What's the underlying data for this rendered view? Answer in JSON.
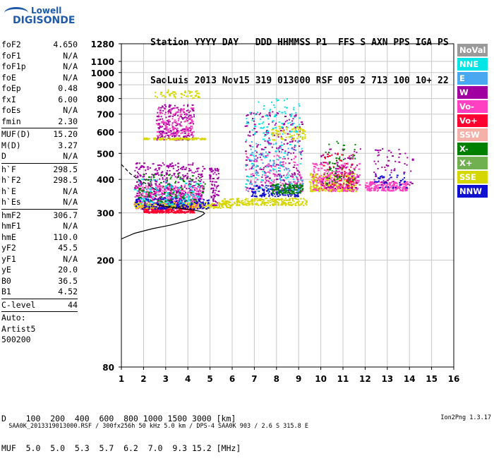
{
  "logo": {
    "line1": "Lowell",
    "line2": "DIGISONDE"
  },
  "header": {
    "line1": "Station YYYY DAY   DDD HHMMSS P1  FFS S AXN PPS IGA PS",
    "line2": "SaoLuis 2013 Nov15 319 013000 RSF 005 2 713 100 10+ 22"
  },
  "params": [
    [
      [
        "foF2",
        "4.650"
      ],
      [
        "foF1",
        "N/A"
      ],
      [
        "foF1p",
        "N/A"
      ],
      [
        "foE",
        "N/A"
      ],
      [
        "foEp",
        "0.48"
      ],
      [
        "fxI",
        "6.00"
      ],
      [
        "foEs",
        "N/A"
      ],
      [
        "fmin",
        "2.30"
      ]
    ],
    [
      [
        "MUF(D)",
        "15.20"
      ],
      [
        "M(D)",
        "3.27"
      ],
      [
        "D",
        "N/A"
      ]
    ],
    [
      [
        "h`F",
        "298.5"
      ],
      [
        "h`F2",
        "298.5"
      ],
      [
        "h`E",
        "N/A"
      ],
      [
        "h`Es",
        "N/A"
      ]
    ],
    [
      [
        "hmF2",
        "306.7"
      ],
      [
        "hmF1",
        "N/A"
      ],
      [
        "hmE",
        "110.0"
      ],
      [
        "yF2",
        "45.5"
      ],
      [
        "yF1",
        "N/A"
      ],
      [
        "yE",
        "20.0"
      ],
      [
        "B0",
        "36.5"
      ],
      [
        "B1",
        "4.52"
      ]
    ],
    [
      [
        "C-level",
        "44"
      ]
    ]
  ],
  "auto": [
    "Auto:",
    "Artist5",
    "500200"
  ],
  "footer": {
    "d_row": "D    100  200  400  600  800 1000 1500 3000 [km]",
    "muf_row": "MUF  5.0  5.0  5.3  5.7  6.2  7.0  9.3 15.2 [MHz]",
    "info": "SAA0K_2013319013000.RSF / 300fx256h 50 kHz 5.0 km / DPS-4 SAA0K 903 / 2.6 S 315.8 E",
    "version": "Ion2Png 1.3.17"
  },
  "legend": [
    {
      "label": "NoVal",
      "color": "#999999"
    },
    {
      "label": "NNE",
      "color": "#00e5e5"
    },
    {
      "label": "E",
      "color": "#4aa8f0"
    },
    {
      "label": "W",
      "color": "#a000a0"
    },
    {
      "label": "Vo-",
      "color": "#ff40c0"
    },
    {
      "label": "Vo+",
      "color": "#ff0030"
    },
    {
      "label": "SSW",
      "color": "#f5b0a8"
    },
    {
      "label": "X-",
      "color": "#008000"
    },
    {
      "label": "X+",
      "color": "#70b050"
    },
    {
      "label": "SSE",
      "color": "#d6d600"
    },
    {
      "label": "NNW",
      "color": "#1010d0"
    }
  ],
  "chart_data": {
    "type": "scatter",
    "x_ticks": [
      1,
      2,
      3,
      4,
      5,
      6,
      7,
      8,
      9,
      10,
      11,
      12,
      13,
      14,
      15,
      16
    ],
    "y_ticks": [
      80,
      200,
      300,
      400,
      500,
      600,
      700,
      800,
      900,
      1000,
      1100,
      1280
    ],
    "xlim": [
      1,
      16
    ],
    "ylim": [
      80,
      1280
    ],
    "y_scale": "log",
    "grid": true,
    "clusters": [
      {
        "color": "#ff40c0",
        "xr": [
          1.6,
          4.7
        ],
        "yr": [
          310,
          380
        ],
        "n": 500
      },
      {
        "color": "#a000a0",
        "xr": [
          1.6,
          4.8
        ],
        "yr": [
          320,
          460
        ],
        "n": 350
      },
      {
        "color": "#ff0030",
        "xr": [
          2.0,
          4.3
        ],
        "yr": [
          300,
          318
        ],
        "n": 300
      },
      {
        "color": "#a000a0",
        "xr": [
          2.6,
          4.3
        ],
        "yr": [
          560,
          760
        ],
        "n": 220
      },
      {
        "color": "#ff40c0",
        "xr": [
          2.6,
          4.3
        ],
        "yr": [
          580,
          740
        ],
        "n": 120
      },
      {
        "color": "#d6d600",
        "xr": [
          2.5,
          4.6
        ],
        "yr": [
          800,
          860
        ],
        "n": 50
      },
      {
        "color": "#d6d600",
        "xr": [
          2.0,
          4.8
        ],
        "yr": [
          562,
          570
        ],
        "n": 120
      },
      {
        "color": "#d6d600",
        "xr": [
          1.6,
          6.0
        ],
        "yr": [
          312,
          328
        ],
        "n": 260
      },
      {
        "color": "#d6d600",
        "xr": [
          5.5,
          9.4
        ],
        "yr": [
          320,
          340
        ],
        "n": 220
      },
      {
        "color": "#1010d0",
        "xr": [
          1.6,
          5.0
        ],
        "yr": [
          310,
          340
        ],
        "n": 160
      },
      {
        "color": "#00e5e5",
        "xr": [
          1.6,
          4.6
        ],
        "yr": [
          320,
          400
        ],
        "n": 110
      },
      {
        "color": "#008000",
        "xr": [
          1.8,
          4.8
        ],
        "yr": [
          330,
          420
        ],
        "n": 90
      },
      {
        "color": "#a000a0",
        "xr": [
          5.0,
          5.4
        ],
        "yr": [
          320,
          440
        ],
        "n": 70
      },
      {
        "color": "#a000a0",
        "xr": [
          6.6,
          9.2
        ],
        "yr": [
          360,
          720
        ],
        "n": 260
      },
      {
        "color": "#00e5e5",
        "xr": [
          6.6,
          9.2
        ],
        "yr": [
          360,
          800
        ],
        "n": 180
      },
      {
        "color": "#ff40c0",
        "xr": [
          6.6,
          9.2
        ],
        "yr": [
          360,
          500
        ],
        "n": 120
      },
      {
        "color": "#1010d0",
        "xr": [
          6.8,
          9.0
        ],
        "yr": [
          345,
          380
        ],
        "n": 120
      },
      {
        "color": "#008000",
        "xr": [
          7.8,
          9.2
        ],
        "yr": [
          355,
          385
        ],
        "n": 120
      },
      {
        "color": "#d6d600",
        "xr": [
          7.8,
          9.3
        ],
        "yr": [
          560,
          630
        ],
        "n": 70
      },
      {
        "color": "#4aa8f0",
        "xr": [
          6.8,
          9.2
        ],
        "yr": [
          360,
          560
        ],
        "n": 80
      },
      {
        "color": "#d6d600",
        "xr": [
          9.5,
          11.6
        ],
        "yr": [
          360,
          420
        ],
        "n": 260
      },
      {
        "color": "#ff40c0",
        "xr": [
          9.6,
          11.8
        ],
        "yr": [
          360,
          460
        ],
        "n": 220
      },
      {
        "color": "#ff0030",
        "xr": [
          10.0,
          11.6
        ],
        "yr": [
          370,
          500
        ],
        "n": 80
      },
      {
        "color": "#a000a0",
        "xr": [
          10.0,
          11.8
        ],
        "yr": [
          370,
          520
        ],
        "n": 80
      },
      {
        "color": "#008000",
        "xr": [
          10.2,
          11.6
        ],
        "yr": [
          380,
          560
        ],
        "n": 50
      },
      {
        "color": "#ff40c0",
        "xr": [
          12.0,
          13.9
        ],
        "yr": [
          362,
          392
        ],
        "n": 180
      },
      {
        "color": "#a000a0",
        "xr": [
          12.4,
          14.2
        ],
        "yr": [
          380,
          520
        ],
        "n": 60
      },
      {
        "color": "#1010d0",
        "xr": [
          12.4,
          14.0
        ],
        "yr": [
          370,
          420
        ],
        "n": 40
      }
    ],
    "profile_solid": [
      [
        1.0,
        240
      ],
      [
        1.6,
        252
      ],
      [
        2.4,
        262
      ],
      [
        3.2,
        270
      ],
      [
        3.8,
        278
      ],
      [
        4.3,
        284
      ],
      [
        4.6,
        292
      ],
      [
        4.75,
        298.5
      ],
      [
        4.7,
        302
      ],
      [
        4.4,
        306
      ],
      [
        3.9,
        310
      ],
      [
        3.4,
        314
      ],
      [
        2.9,
        318
      ],
      [
        2.6,
        322
      ]
    ],
    "profile_dashed": [
      [
        1.0,
        455
      ],
      [
        1.4,
        420
      ],
      [
        1.8,
        398
      ],
      [
        2.2,
        382
      ],
      [
        2.6,
        364
      ]
    ]
  }
}
